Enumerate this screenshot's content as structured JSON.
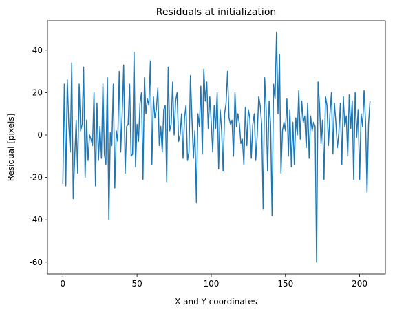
{
  "chart_data": {
    "type": "line",
    "title": "Residuals at initialization",
    "xlabel": "X and Y coordinates",
    "ylabel": "Residual [pixels]",
    "x": [
      0,
      1,
      2,
      3,
      4,
      5,
      6,
      7,
      8,
      9,
      10,
      11,
      12,
      13,
      14,
      15,
      16,
      17,
      18,
      19,
      20,
      21,
      22,
      23,
      24,
      25,
      26,
      27,
      28,
      29,
      30,
      31,
      32,
      33,
      34,
      35,
      36,
      37,
      38,
      39,
      40,
      41,
      42,
      43,
      44,
      45,
      46,
      47,
      48,
      49,
      50,
      51,
      52,
      53,
      54,
      55,
      56,
      57,
      58,
      59,
      60,
      61,
      62,
      63,
      64,
      65,
      66,
      67,
      68,
      69,
      70,
      71,
      72,
      73,
      74,
      75,
      76,
      77,
      78,
      79,
      80,
      81,
      82,
      83,
      84,
      85,
      86,
      87,
      88,
      89,
      90,
      91,
      92,
      93,
      94,
      95,
      96,
      97,
      98,
      99,
      100,
      101,
      102,
      103,
      104,
      105,
      106,
      107,
      108,
      109,
      110,
      111,
      112,
      113,
      114,
      115,
      116,
      117,
      118,
      119,
      120,
      121,
      122,
      123,
      124,
      125,
      126,
      127,
      128,
      129,
      130,
      131,
      132,
      133,
      134,
      135,
      136,
      137,
      138,
      139,
      140,
      141,
      142,
      143,
      144,
      145,
      146,
      147,
      148,
      149,
      150,
      151,
      152,
      153,
      154,
      155,
      156,
      157,
      158,
      159,
      160,
      161,
      162,
      163,
      164,
      165,
      166,
      167,
      168,
      169,
      170,
      171,
      172,
      173,
      174,
      175,
      176,
      177,
      178,
      179,
      180,
      181,
      182,
      183,
      184,
      185,
      186,
      187,
      188,
      189,
      190,
      191,
      192,
      193,
      194,
      195,
      196,
      197,
      198,
      199,
      200,
      201,
      202,
      203,
      204,
      205,
      206,
      207
    ],
    "series": [
      {
        "color": "#1f77b4",
        "values": [
          -23,
          24,
          -24,
          26,
          5,
          -8,
          34,
          -30,
          -10,
          7,
          -18,
          24,
          2,
          5,
          32,
          -20,
          7,
          -12,
          0,
          -2,
          -5,
          20,
          -24,
          15,
          -12,
          4,
          -11,
          24,
          -9,
          -14,
          27,
          -40,
          1,
          -5,
          24,
          -25,
          2,
          -3,
          30,
          -8,
          10,
          33,
          -18,
          4,
          5,
          24,
          -10,
          -9,
          39,
          -15,
          5,
          -3,
          15,
          20,
          -21,
          27,
          10,
          17,
          14,
          35,
          -14,
          18,
          8,
          12,
          22,
          -5,
          4,
          -8,
          12,
          14,
          -22,
          32,
          2,
          5,
          25,
          0,
          16,
          20,
          -3,
          0,
          10,
          -11,
          8,
          14,
          -12,
          -8,
          28,
          8,
          -11,
          2,
          -32,
          10,
          4,
          23,
          -9,
          31,
          16,
          25,
          3,
          18,
          6,
          -8,
          14,
          3,
          20,
          -16,
          12,
          2,
          -17,
          10,
          15,
          30,
          8,
          5,
          7,
          -10,
          20,
          4,
          10,
          5,
          -4,
          -2,
          -14,
          13,
          -5,
          12,
          8,
          -11,
          5,
          10,
          -12,
          0,
          18,
          14,
          5,
          -35,
          27,
          12,
          -17,
          16,
          5,
          -38,
          24,
          17,
          48.5,
          10,
          38,
          -18,
          2,
          6,
          2,
          17,
          -10,
          12,
          -15,
          6,
          -14,
          8,
          0,
          21,
          -2,
          16,
          6,
          9,
          -6,
          15,
          -11,
          9,
          2,
          6,
          4,
          -60,
          25,
          14,
          -4,
          7,
          -21,
          18,
          14,
          -5,
          10,
          20,
          -9,
          15,
          6,
          -6,
          1,
          15,
          -14,
          18,
          4,
          9,
          -10,
          19,
          3,
          16,
          -21,
          20,
          -1,
          12,
          -21,
          10,
          4,
          21,
          6,
          -27,
          5,
          16
        ]
      }
    ],
    "xlim": [
      -10.35,
      217.35
    ],
    "ylim": [
      -65.6,
      53.9
    ],
    "xticks": [
      0,
      50,
      100,
      150,
      200
    ],
    "yticks": [
      -60,
      -40,
      -20,
      0,
      20,
      40
    ]
  }
}
